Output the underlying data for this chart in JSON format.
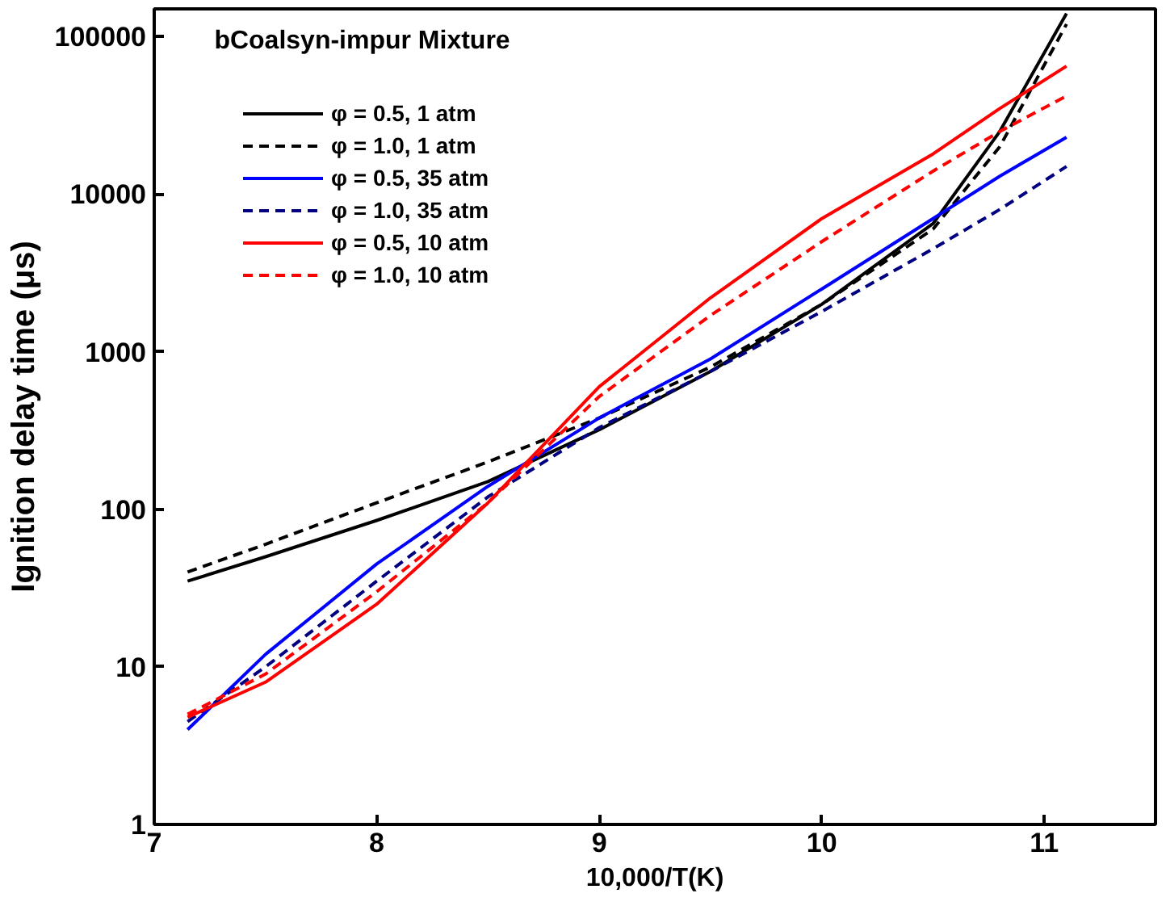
{
  "chart_data": {
    "type": "line",
    "title": "bCoalsyn-impur Mixture",
    "xlabel": "10,000/T(K)",
    "ylabel": "Ignition delay time (μs)",
    "log": "y",
    "xlim": [
      7,
      11.5
    ],
    "ylim": [
      1,
      150000
    ],
    "xticks": [
      7,
      8,
      9,
      10,
      11
    ],
    "yticks": [
      1,
      10,
      100,
      1000,
      10000,
      100000
    ],
    "grid": false,
    "legend": "top left",
    "x": [
      7.15,
      7.5,
      8,
      8.5,
      9,
      9.5,
      10,
      10.5,
      10.8,
      11.1
    ],
    "series": [
      {
        "name": "φ = 0.5, 1 atm",
        "color": "#000000",
        "line_style": "solid",
        "values": [
          35,
          50,
          85,
          150,
          320,
          750,
          2000,
          6500,
          25000,
          140000
        ]
      },
      {
        "name": "φ = 1.0, 1 atm",
        "color": "#000000",
        "line_style": "dashed",
        "values": [
          40,
          60,
          110,
          200,
          380,
          800,
          2000,
          6000,
          20000,
          120000
        ]
      },
      {
        "name": "φ = 0.5, 35 atm",
        "color": "#0000ff",
        "line_style": "solid",
        "values": [
          4,
          12,
          45,
          140,
          380,
          900,
          2500,
          7000,
          13000,
          23000
        ]
      },
      {
        "name": "φ = 1.0, 35 atm",
        "color": "#000080",
        "line_style": "dashed",
        "values": [
          4.5,
          10,
          35,
          120,
          330,
          750,
          1800,
          4500,
          8000,
          15000
        ]
      },
      {
        "name": "φ = 0.5, 10 atm",
        "color": "#ff0000",
        "line_style": "solid",
        "values": [
          4.8,
          8,
          25,
          110,
          600,
          2200,
          7000,
          18000,
          35000,
          65000
        ]
      },
      {
        "name": "φ = 1.0, 10 atm",
        "color": "#ff0000",
        "line_style": "dashed",
        "values": [
          5,
          9,
          30,
          110,
          520,
          1700,
          5000,
          14000,
          25000,
          42000
        ]
      }
    ]
  }
}
